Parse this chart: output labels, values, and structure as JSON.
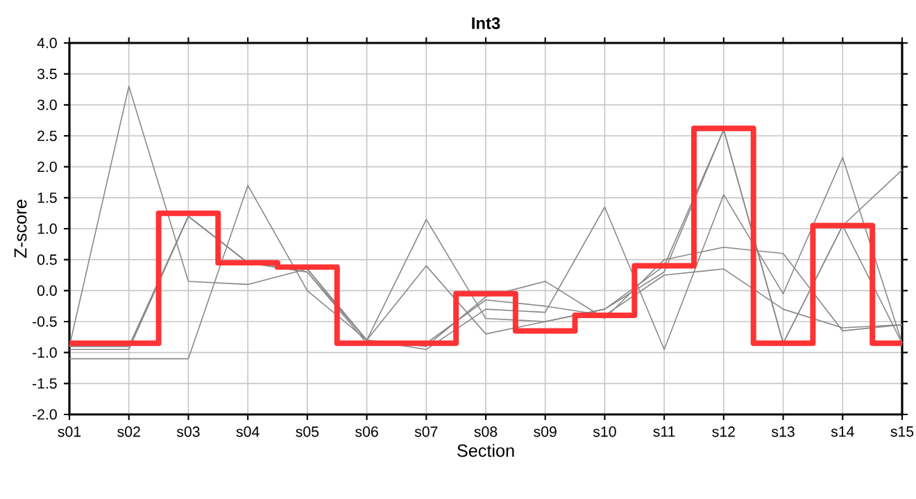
{
  "chart_data": {
    "type": "line",
    "title": "Int3",
    "xlabel": "Section",
    "ylabel": "Z-score",
    "categories": [
      "s01",
      "s02",
      "s03",
      "s04",
      "s05",
      "s06",
      "s07",
      "s08",
      "s09",
      "s10",
      "s11",
      "s12",
      "s13",
      "s14",
      "s15"
    ],
    "series": [
      {
        "color": "#888888",
        "values": [
          -0.9,
          3.3,
          0.15,
          0.1,
          0.35,
          -0.8,
          1.15,
          -0.45,
          -0.5,
          -0.3,
          0.3,
          2.6,
          -0.85,
          1.05,
          -0.85
        ]
      },
      {
        "color": "#888888",
        "values": [
          -1.1,
          -1.1,
          -1.1,
          1.7,
          0.0,
          -0.8,
          -0.95,
          -0.3,
          -0.35,
          1.35,
          -0.95,
          1.55,
          -0.05,
          2.15,
          -0.85
        ]
      },
      {
        "color": "#888888",
        "values": [
          -0.95,
          -0.95,
          1.2,
          0.45,
          0.35,
          -0.8,
          0.4,
          -0.7,
          null,
          -0.3,
          0.4,
          2.6,
          -0.85,
          1.05,
          1.95
        ]
      },
      {
        "color": "#888888",
        "values": [
          -0.9,
          -0.9,
          1.2,
          0.45,
          0.3,
          -0.8,
          -0.9,
          -0.1,
          0.15,
          -0.45,
          0.5,
          0.7,
          0.6,
          -0.65,
          -0.55
        ]
      },
      {
        "color": "#888888",
        "values": [
          -0.9,
          -0.9,
          1.2,
          0.45,
          0.3,
          -0.85,
          -0.85,
          -0.15,
          -0.25,
          -0.4,
          0.25,
          0.35,
          -0.3,
          -0.6,
          -0.55
        ]
      },
      {
        "type": "step",
        "color": "#ff3333",
        "values": [
          -0.85,
          -0.85,
          1.25,
          0.45,
          0.38,
          -0.85,
          -0.85,
          -0.05,
          -0.65,
          -0.4,
          0.4,
          2.62,
          -0.85,
          1.05,
          -0.85
        ]
      }
    ],
    "ylim": [
      -2.0,
      4.0
    ],
    "yticks": [
      {
        "value": -2.0,
        "label": "-2.0"
      },
      {
        "value": -1.5,
        "label": "-1.5"
      },
      {
        "value": -1.0,
        "label": "-1.0"
      },
      {
        "value": -0.5,
        "label": "-0.5"
      },
      {
        "value": 0.0,
        "label": "0.0"
      },
      {
        "value": 0.5,
        "label": "0.5"
      },
      {
        "value": 1.0,
        "label": "1.0"
      },
      {
        "value": 1.5,
        "label": "1.5"
      },
      {
        "value": 2.0,
        "label": "2.0"
      },
      {
        "value": 2.5,
        "label": "2.5"
      },
      {
        "value": 3.0,
        "label": "3.0"
      },
      {
        "value": 3.5,
        "label": "3.5"
      },
      {
        "value": 4.0,
        "label": "4.0"
      }
    ],
    "grid": true
  }
}
